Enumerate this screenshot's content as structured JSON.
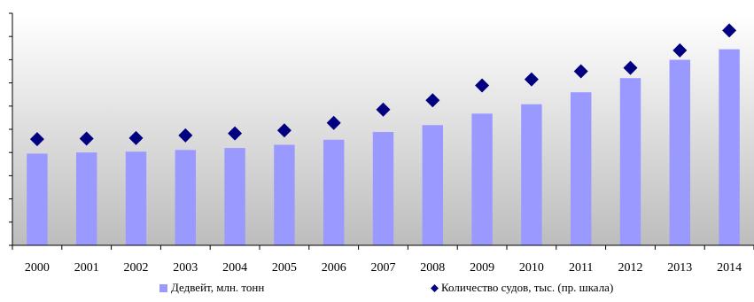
{
  "chart_data": {
    "type": "bar",
    "title": "",
    "xlabel": "",
    "ylabel": "",
    "categories": [
      "2000",
      "2001",
      "2002",
      "2003",
      "2004",
      "2005",
      "2006",
      "2007",
      "2008",
      "2009",
      "2010",
      "2011",
      "2012",
      "2013",
      "2014"
    ],
    "series": [
      {
        "name": "Дедвейт, млн. тонн",
        "type": "bar",
        "axis": "left",
        "color": "#9999ff",
        "values": [
          790,
          800,
          807,
          822,
          839,
          866,
          910,
          977,
          1036,
          1135,
          1216,
          1319,
          1441,
          1599,
          1690
        ]
      },
      {
        "name": "Количество судов, тыс. (пр. шкала)",
        "type": "scatter",
        "axis": "right",
        "marker": "diamond",
        "color": "#000080",
        "values": [
          46.6,
          46.8,
          47.0,
          47.9,
          48.6,
          49.6,
          52.2,
          56.8,
          60.0,
          65.1,
          67.2,
          70.0,
          71.2,
          77.2,
          84.1
        ]
      }
    ],
    "ylim_left": [
      0,
      2000
    ],
    "ylim_right": [
      10,
      90
    ],
    "grid": false,
    "legend": "bottom"
  }
}
